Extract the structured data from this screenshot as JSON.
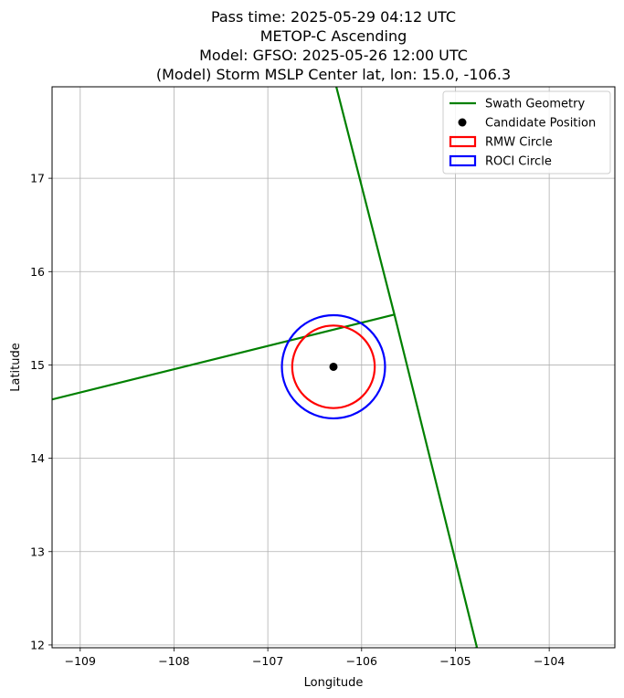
{
  "chart_data": {
    "type": "line",
    "title_lines": [
      "Pass time: 2025-05-29 04:12 UTC",
      "METOP-C Ascending",
      "Model: GFSO: 2025-05-26 12:00 UTC",
      "(Model) Storm MSLP Center lat, lon: 15.0, -106.3"
    ],
    "xlabel": "Longitude",
    "ylabel": "Latitude",
    "xlim": [
      -109.3,
      -103.3
    ],
    "ylim": [
      11.97,
      17.98
    ],
    "xticks": [
      -109,
      -108,
      -107,
      -106,
      -105,
      -104
    ],
    "yticks": [
      12,
      13,
      14,
      15,
      16,
      17
    ],
    "grid": true,
    "legend_position": "top-right",
    "series": [
      {
        "name": "Swath Geometry",
        "kind": "line",
        "color": "#008000",
        "segments": [
          [
            [
              -106.27,
              17.98
            ],
            [
              -105.65,
              15.54
            ],
            [
              -104.77,
              11.97
            ],
            [
              -104.95,
              11.93
            ]
          ],
          [
            [
              -109.3,
              14.63
            ],
            [
              -105.65,
              15.54
            ]
          ]
        ]
      },
      {
        "name": "Candidate Position",
        "kind": "scatter",
        "color": "#000000",
        "points": [
          [
            -106.3,
            14.98
          ]
        ]
      },
      {
        "name": "RMW Circle",
        "kind": "circle",
        "color": "#ff0000",
        "center": [
          -106.3,
          14.98
        ],
        "radius_deg": 0.44
      },
      {
        "name": "ROCI Circle",
        "kind": "circle",
        "color": "#0000ff",
        "center": [
          -106.3,
          14.98
        ],
        "radius_deg": 0.55
      }
    ]
  }
}
